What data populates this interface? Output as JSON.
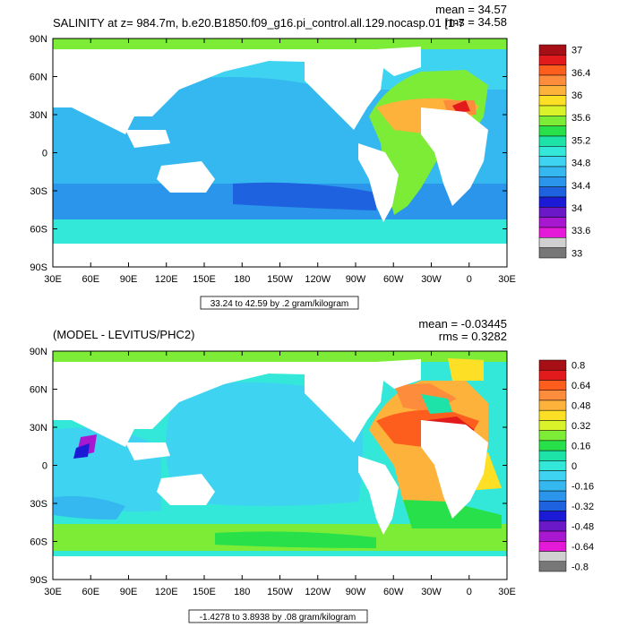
{
  "chart_data": [
    {
      "type": "heatmap",
      "title": "SALINITY at z= 984.7m, b.e20.B1850.f09_g16.pi_control.all.129.nocasp.01 [1-7",
      "stats": [
        "mean = 34.57",
        "rms = 34.58"
      ],
      "x_ticks": [
        "30E",
        "60E",
        "90E",
        "120E",
        "150E",
        "180",
        "150W",
        "120W",
        "90W",
        "60W",
        "30W",
        "0",
        "30E"
      ],
      "y_ticks": [
        "90N",
        "60N",
        "30N",
        "0",
        "30S",
        "60S",
        "90S"
      ],
      "xlim": [
        30,
        390
      ],
      "ylim": [
        -90,
        90
      ],
      "contour_label": "33.24 to 42.59 by .2 gram/kilogram",
      "colorbar_labels": [
        "37",
        "36.4",
        "36",
        "35.6",
        "35.2",
        "34.8",
        "34.4",
        "34",
        "33.6",
        "33"
      ],
      "colors": [
        "#a50f15",
        "#e31a1c",
        "#fd5e1e",
        "#fd8d3c",
        "#fdb23c",
        "#fde025",
        "#d9f22a",
        "#7cec37",
        "#27e04a",
        "#1ee3a8",
        "#33e8d8",
        "#3fd3f2",
        "#35b8f0",
        "#2a95ea",
        "#1f62e0",
        "#1b1bd6",
        "#6a18c8",
        "#a818d0",
        "#e41ad8",
        "#d0d0d0",
        "#777777"
      ],
      "regions": [
        {
          "lon": [
            30,
            390
          ],
          "lat": [
            -90,
            90
          ],
          "value": 34.7
        }
      ]
    },
    {
      "type": "heatmap",
      "title": "(MODEL - LEVITUS/PHC2)",
      "stats": [
        "mean = -0.03445",
        "rms = 0.3282"
      ],
      "x_ticks": [
        "30E",
        "60E",
        "90E",
        "120E",
        "150E",
        "180",
        "150W",
        "120W",
        "90W",
        "60W",
        "30W",
        "0",
        "30E"
      ],
      "y_ticks": [
        "90N",
        "60N",
        "30N",
        "0",
        "30S",
        "60S",
        "90S"
      ],
      "xlim": [
        30,
        390
      ],
      "ylim": [
        -90,
        90
      ],
      "contour_label": "-1.4278 to 3.8938 by .08 gram/kilogram",
      "colorbar_labels": [
        "0.8",
        "0.64",
        "0.48",
        "0.32",
        "0.16",
        "0",
        "-0.16",
        "-0.32",
        "-0.48",
        "-0.64",
        "-0.8"
      ],
      "colors": [
        "#a50f15",
        "#e31a1c",
        "#fd5e1e",
        "#fd8d3c",
        "#fdb23c",
        "#fde025",
        "#d9f22a",
        "#7cec37",
        "#27e04a",
        "#1ee3a8",
        "#33e8d8",
        "#3fd3f2",
        "#35b8f0",
        "#2a95ea",
        "#1f62e0",
        "#1b1bd6",
        "#6a18c8",
        "#a818d0",
        "#e41ad8",
        "#d0d0d0",
        "#777777"
      ],
      "regions": [
        {
          "lon": [
            30,
            390
          ],
          "lat": [
            -90,
            90
          ],
          "value": -0.1
        }
      ]
    }
  ]
}
